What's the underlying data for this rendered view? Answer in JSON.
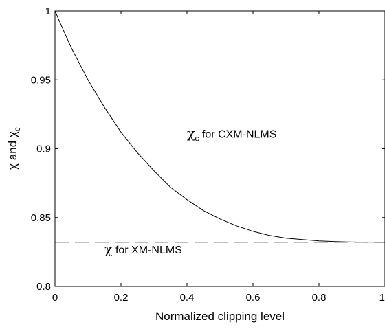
{
  "chart_data": {
    "type": "line",
    "xlabel": "Normalized clipping level",
    "ylabel": {
      "prefix": "χ and χ",
      "sub": "c"
    },
    "xlim": [
      0,
      1
    ],
    "ylim": [
      0.8,
      1
    ],
    "xticks": [
      0,
      0.2,
      0.4,
      0.6,
      0.8,
      1
    ],
    "xtick_labels": [
      "0",
      "0.2",
      "0.4",
      "0.6",
      "0.8",
      "1"
    ],
    "yticks": [
      0.8,
      0.85,
      0.9,
      0.95,
      1
    ],
    "ytick_labels": [
      "0.8",
      "0.85",
      "0.9",
      "0.95",
      "1"
    ],
    "grid": false,
    "series": [
      {
        "style": "solid",
        "x": [
          0,
          0.02,
          0.05,
          0.1,
          0.15,
          0.2,
          0.25,
          0.3,
          0.35,
          0.4,
          0.45,
          0.5,
          0.55,
          0.6,
          0.65,
          0.7,
          0.75,
          0.8,
          0.85,
          0.9,
          0.95,
          1.0
        ],
        "y": [
          1.0,
          0.989,
          0.973,
          0.95,
          0.93,
          0.912,
          0.897,
          0.884,
          0.872,
          0.863,
          0.855,
          0.849,
          0.844,
          0.84,
          0.837,
          0.835,
          0.834,
          0.833,
          0.8325,
          0.8322,
          0.8321,
          0.832
        ]
      },
      {
        "style": "dashed",
        "x": [
          0,
          1
        ],
        "y": [
          0.832,
          0.832
        ]
      }
    ],
    "annotations": [
      {
        "greek": "χ",
        "sub": "c",
        "text": " for CXM-NLMS",
        "x": 0.4,
        "y": 0.908
      },
      {
        "greek": "χ",
        "sub": "",
        "text": "  for XM-NLMS",
        "x": 0.15,
        "y": 0.824
      }
    ]
  }
}
